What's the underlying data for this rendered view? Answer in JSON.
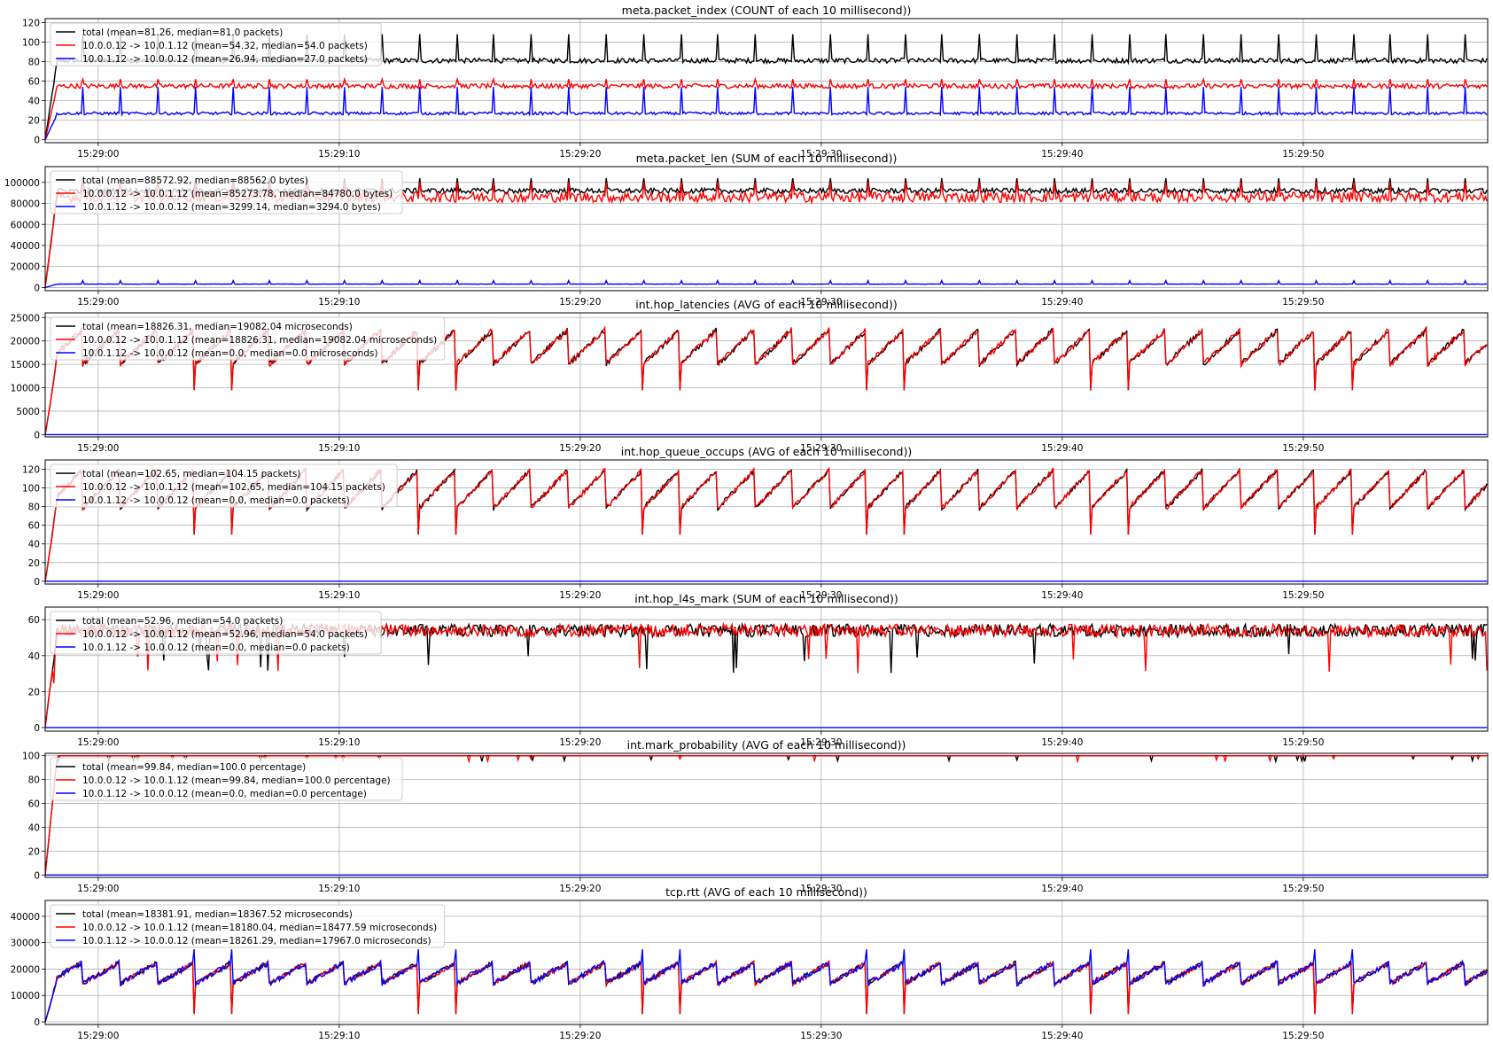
{
  "chart_data": [
    {
      "type": "line",
      "title": "meta.packet_index (COUNT of each 10 millisecond))",
      "ylim": [
        -3,
        124
      ],
      "yticks": [
        0,
        20,
        40,
        60,
        80,
        100,
        120
      ],
      "xticks": [
        "15:29:00",
        "15:29:10",
        "15:29:20",
        "15:29:30",
        "15:29:40",
        "15:29:50"
      ],
      "grid": true,
      "legend_position": "top-left",
      "series": [
        {
          "name": "total (mean=81.26, median=81.0 packets)",
          "color": "#000000",
          "base": 81,
          "noise": 2.5,
          "spike_to": 108,
          "start": "ramp"
        },
        {
          "name": "10.0.0.12 -> 10.0.1.12 (mean=54.32, median=54.0 packets)",
          "color": "#ff0000",
          "base": 55,
          "noise": 2.5,
          "spike_to": 62,
          "start": "ramp"
        },
        {
          "name": "10.0.1.12 -> 10.0.0.12 (mean=26.94, median=27.0 packets)",
          "color": "#0000ff",
          "base": 27,
          "noise": 1.5,
          "spike_to": 54,
          "start": "ramp"
        }
      ]
    },
    {
      "type": "line",
      "title": "meta.packet_len (SUM of each 10 millisecond))",
      "ylim": [
        -3000,
        115000
      ],
      "yticks": [
        0,
        20000,
        40000,
        60000,
        80000,
        100000
      ],
      "xticks": [
        "15:29:00",
        "15:29:10",
        "15:29:20",
        "15:29:30",
        "15:29:40",
        "15:29:50"
      ],
      "grid": true,
      "legend_position": "top-left",
      "series": [
        {
          "name": "total (mean=88572.92, median=88562.0 bytes)",
          "color": "#000000",
          "base": 92000,
          "noise": 2500,
          "spike_to": 104000,
          "start": "ramp"
        },
        {
          "name": "10.0.0.12 -> 10.0.1.12 (mean=85273.78, median=84780.0 bytes)",
          "color": "#ff0000",
          "base": 86000,
          "noise": 5000,
          "spike_to": 100000,
          "start": "ramp"
        },
        {
          "name": "10.0.1.12 -> 10.0.0.12 (mean=3299.14, median=3294.0 bytes)",
          "color": "#0000ff",
          "base": 3300,
          "noise": 150,
          "spike_to": 6500,
          "start": "ramp"
        }
      ]
    },
    {
      "type": "line",
      "title": "int.hop_latencies (AVG of each 10 millisecond))",
      "ylim": [
        -500,
        26000
      ],
      "yticks": [
        0,
        5000,
        10000,
        15000,
        20000,
        25000
      ],
      "xticks": [
        "15:29:00",
        "15:29:10",
        "15:29:20",
        "15:29:30",
        "15:29:40",
        "15:29:50"
      ],
      "grid": true,
      "legend_position": "top-left",
      "series": [
        {
          "name": "total (mean=18826.31, median=19082.04 microseconds)",
          "color": "#000000",
          "hidden_under": 1
        },
        {
          "name": "10.0.0.12 -> 10.0.1.12 (mean=18826.31, median=19082.04 microseconds)",
          "color": "#ff0000",
          "sawtooth": {
            "low": 15000,
            "high": 22500,
            "dip": 9500,
            "period_s": 1.55
          },
          "noise": 600,
          "start": "ramp"
        },
        {
          "name": "10.0.1.12 -> 10.0.0.12 (mean=0.0, median=0.0 microseconds)",
          "color": "#0000ff",
          "base": 0,
          "noise": 0
        }
      ]
    },
    {
      "type": "line",
      "title": "int.hop_queue_occups (AVG of each 10 millisecond))",
      "ylim": [
        -3,
        130
      ],
      "yticks": [
        0,
        20,
        40,
        60,
        80,
        100,
        120
      ],
      "xticks": [
        "15:29:00",
        "15:29:10",
        "15:29:20",
        "15:29:30",
        "15:29:40",
        "15:29:50"
      ],
      "grid": true,
      "legend_position": "top-left",
      "series": [
        {
          "name": "total (mean=102.65, median=104.15 packets)",
          "color": "#000000",
          "hidden_under": 1
        },
        {
          "name": "10.0.0.12 -> 10.0.1.12 (mean=102.65, median=104.15 packets)",
          "color": "#ff0000",
          "sawtooth": {
            "low": 78,
            "high": 120,
            "dip": 50,
            "period_s": 1.55
          },
          "noise": 2.5,
          "start": "ramp"
        },
        {
          "name": "10.0.1.12 -> 10.0.0.12 (mean=0.0, median=0.0 packets)",
          "color": "#0000ff",
          "base": 0,
          "noise": 0
        }
      ]
    },
    {
      "type": "line",
      "title": "int.hop_l4s_mark (SUM of each 10 millisecond))",
      "ylim": [
        -2,
        67
      ],
      "yticks": [
        0,
        20,
        40,
        60
      ],
      "xticks": [
        "15:29:00",
        "15:29:10",
        "15:29:20",
        "15:29:30",
        "15:29:40",
        "15:29:50"
      ],
      "grid": true,
      "legend_position": "top-left",
      "series": [
        {
          "name": "total (mean=52.96, median=54.0 packets)",
          "color": "#000000",
          "hidden_under": 1
        },
        {
          "name": "10.0.0.12 -> 10.0.1.12 (mean=52.96, median=54.0 packets)",
          "color": "#ff0000",
          "base": 54,
          "noise": 3.5,
          "dip_to": 30,
          "start": "ramp"
        },
        {
          "name": "10.0.1.12 -> 10.0.0.12 (mean=0.0, median=0.0 packets)",
          "color": "#0000ff",
          "base": 0,
          "noise": 0
        }
      ]
    },
    {
      "type": "line",
      "title": "int.mark_probability (AVG of each 10 millisecond))",
      "ylim": [
        -2,
        102
      ],
      "yticks": [
        0,
        20,
        40,
        60,
        80,
        100
      ],
      "xticks": [
        "15:29:00",
        "15:29:10",
        "15:29:20",
        "15:29:30",
        "15:29:40",
        "15:29:50"
      ],
      "grid": true,
      "legend_position": "top-left",
      "series": [
        {
          "name": "total (mean=99.84, median=100.0 percentage)",
          "color": "#000000",
          "hidden_under": 1
        },
        {
          "name": "10.0.0.12 -> 10.0.1.12 (mean=99.84, median=100.0 percentage)",
          "color": "#ff0000",
          "base": 100,
          "noise": 0,
          "dip_to": 95,
          "start": "ramp"
        },
        {
          "name": "10.0.1.12 -> 10.0.0.12 (mean=0.0, median=0.0 percentage)",
          "color": "#0000ff",
          "base": 0,
          "noise": 0
        }
      ]
    },
    {
      "type": "line",
      "title": "tcp.rtt (AVG of each 10 millisecond))",
      "ylim": [
        -1000,
        46000
      ],
      "yticks": [
        0,
        10000,
        20000,
        30000,
        40000
      ],
      "xticks": [
        "15:29:00",
        "15:29:10",
        "15:29:20",
        "15:29:30",
        "15:29:40",
        "15:29:50"
      ],
      "grid": true,
      "legend_position": "top-left",
      "series": [
        {
          "name": "total (mean=18381.91, median=18367.52 microseconds)",
          "color": "#000000",
          "hidden_under": 1
        },
        {
          "name": "10.0.0.12 -> 10.0.1.12 (mean=18180.04, median=18477.59 microseconds)",
          "color": "#ff0000",
          "sawtooth": {
            "low": 14500,
            "high": 22500,
            "dip": 3000,
            "period_s": 1.55
          },
          "noise": 900,
          "start": "ramp"
        },
        {
          "name": "10.0.1.12 -> 10.0.0.12 (mean=18261.29, median=17967.0 microseconds)",
          "color": "#0000ff",
          "sawtooth": {
            "low": 14500,
            "high": 22500,
            "dip": 27500,
            "period_s": 1.55
          },
          "noise": 1100,
          "start": "ramp"
        }
      ]
    }
  ]
}
